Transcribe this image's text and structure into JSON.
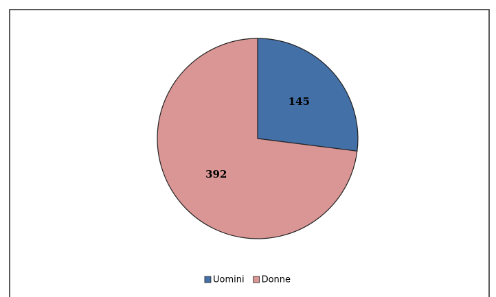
{
  "chart_data": {
    "type": "pie",
    "categories": [
      "Uomini",
      "Donne"
    ],
    "values": [
      145,
      392
    ],
    "colors": [
      "#4470a8",
      "#d99694"
    ],
    "legend": "bottom"
  }
}
